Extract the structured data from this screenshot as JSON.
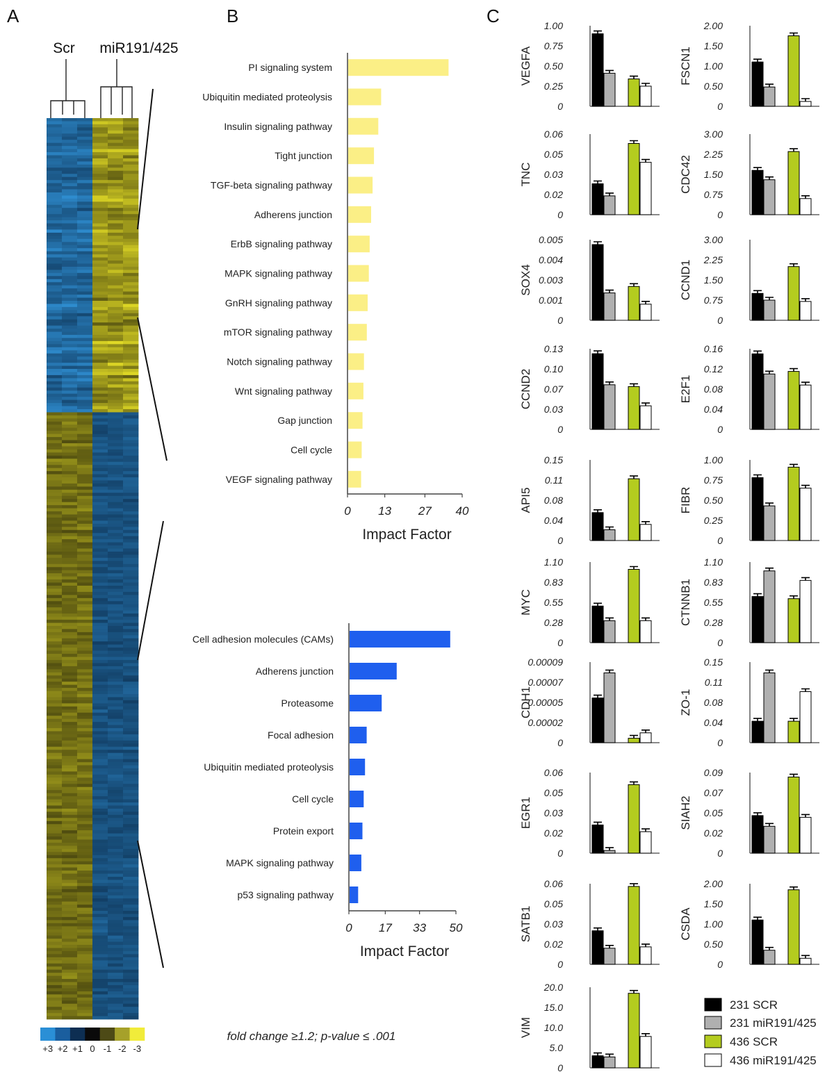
{
  "panels": [
    "A",
    "B",
    "C"
  ],
  "chart_data": [
    {
      "panel": "A",
      "type": "heatmap",
      "column_groups": [
        "Scr",
        "miR191/425"
      ],
      "colorbar_labels": [
        "+3",
        "+2",
        "+1",
        "0",
        "-1",
        "-2",
        "-3"
      ],
      "colorbar_colors": [
        "#2a8fd6",
        "#1a5e9e",
        "#0d2e52",
        "#0a0a0a",
        "#4d4a16",
        "#a6a12a",
        "#f1ec3a"
      ],
      "colors": {
        "blue": "#2f7fb7",
        "yellow": "#d9d42c",
        "dark": "#2a2a14"
      },
      "rows_top": 95,
      "rows_bottom": 196,
      "rows_switch": 34
    },
    {
      "panel": "B-top",
      "type": "bar",
      "orientation": "horizontal",
      "categories": [
        "PI signaling system",
        "Ubiquitin mediated proteolysis",
        "Insulin signaling pathway",
        "Tight junction",
        "TGF-beta signaling pathway",
        "Adherens junction",
        "ErbB signaling pathway",
        "MAPK signaling pathway",
        "GnRH signaling pathway",
        "mTOR signaling pathway",
        "Notch signaling pathway",
        "Wnt signaling pathway",
        "Gap junction",
        "Cell cycle",
        "VEGF signaling pathway"
      ],
      "values": [
        35,
        11.5,
        10.5,
        9,
        8.5,
        8,
        7.5,
        7.2,
        6.8,
        6.5,
        5.5,
        5.3,
        5,
        4.7,
        4.5
      ],
      "xticks": [
        "0",
        "13",
        "27",
        "40"
      ],
      "xlim": [
        0,
        40
      ],
      "xlabel": "Impact Factor",
      "color": "#fbef86"
    },
    {
      "panel": "B-bottom",
      "type": "bar",
      "orientation": "horizontal",
      "categories": [
        "Cell adhesion molecules (CAMs)",
        "Adherens junction",
        "Proteasome",
        "Focal adhesion",
        "Ubiquitin mediated proteolysis",
        "Cell cycle",
        "Protein export",
        "MAPK signaling pathway",
        "p53 signaling pathway"
      ],
      "values": [
        47,
        22,
        15,
        8,
        7.2,
        6.6,
        6,
        5.5,
        4
      ],
      "xticks": [
        "0",
        "17",
        "33",
        "50"
      ],
      "xlim": [
        0,
        50
      ],
      "xlabel": "Impact Factor",
      "color": "#1f5fee",
      "footnote": "fold change ≥1.2; p-value ≤ .001"
    },
    {
      "panel": "C",
      "type": "bar",
      "series": [
        {
          "name": "231 SCR",
          "color": "#000000"
        },
        {
          "name": "231 miR191/425",
          "color": "#b0b0b0"
        },
        {
          "name": "436 SCR",
          "color": "#b4cc1f"
        },
        {
          "name": "436 miR191/425",
          "color": "#ffffff"
        }
      ],
      "genes": [
        {
          "gene": "VEGFA",
          "ylim": [
            0,
            1.0
          ],
          "yticks": [
            "1.00",
            "0.75",
            "0.50",
            "0.25",
            "0"
          ],
          "values": [
            0.9,
            0.41,
            0.34,
            0.25
          ]
        },
        {
          "gene": "FSCN1",
          "ylim": [
            0,
            2.0
          ],
          "yticks": [
            "2.00",
            "1.50",
            "1.00",
            "0.50",
            "0"
          ],
          "values": [
            1.1,
            0.48,
            1.75,
            0.12
          ]
        },
        {
          "gene": "TNC",
          "ylim": [
            0,
            0.06
          ],
          "yticks": [
            "0.06",
            "0.05",
            "0.03",
            "0.02",
            "0"
          ],
          "values": [
            0.023,
            0.014,
            0.053,
            0.039
          ]
        },
        {
          "gene": "CDC42",
          "ylim": [
            0,
            3.0
          ],
          "yticks": [
            "3.00",
            "2.25",
            "1.50",
            "0.75",
            "0"
          ],
          "values": [
            1.65,
            1.3,
            2.35,
            0.6
          ]
        },
        {
          "gene": "SOX4",
          "ylim": [
            0,
            0.005
          ],
          "yticks": [
            "0.005",
            "0.004",
            "0.003",
            "0.001",
            "0"
          ],
          "values": [
            0.0047,
            0.0017,
            0.0021,
            0.001
          ]
        },
        {
          "gene": "CCND1",
          "ylim": [
            0,
            3.0
          ],
          "yticks": [
            "3.00",
            "2.25",
            "1.50",
            "0.75",
            "0"
          ],
          "values": [
            1.0,
            0.75,
            2.0,
            0.7
          ]
        },
        {
          "gene": "CCND2",
          "ylim": [
            0,
            0.13
          ],
          "yticks": [
            "0.13",
            "0.10",
            "0.07",
            "0.03",
            "0"
          ],
          "values": [
            0.122,
            0.072,
            0.069,
            0.038
          ]
        },
        {
          "gene": "E2F1",
          "ylim": [
            0,
            0.16
          ],
          "yticks": [
            "0.16",
            "0.12",
            "0.08",
            "0.04",
            "0"
          ],
          "values": [
            0.15,
            0.11,
            0.115,
            0.088
          ]
        },
        {
          "gene": "API5",
          "ylim": [
            0,
            0.15
          ],
          "yticks": [
            "0.15",
            "0.11",
            "0.08",
            "0.04",
            "0"
          ],
          "values": [
            0.052,
            0.02,
            0.115,
            0.03
          ]
        },
        {
          "gene": "FIBR",
          "ylim": [
            0,
            1.0
          ],
          "yticks": [
            "1.00",
            "0.75",
            "0.50",
            "0.25",
            "0"
          ],
          "values": [
            0.78,
            0.43,
            0.91,
            0.65
          ]
        },
        {
          "gene": "MYC",
          "ylim": [
            0,
            1.1
          ],
          "yticks": [
            "1.10",
            "0.83",
            "0.55",
            "0.28",
            "0"
          ],
          "values": [
            0.5,
            0.3,
            1.0,
            0.3
          ]
        },
        {
          "gene": "CTNNB1",
          "ylim": [
            0,
            1.1
          ],
          "yticks": [
            "1.10",
            "0.83",
            "0.55",
            "0.28",
            "0"
          ],
          "values": [
            0.63,
            0.98,
            0.6,
            0.85
          ]
        },
        {
          "gene": "CDH1",
          "ylim": [
            0,
            9e-05
          ],
          "yticks": [
            "0.00009",
            "0.00007",
            "0.00005",
            "0.00002",
            "0"
          ],
          "values": [
            5e-05,
            7.8e-05,
            5e-06,
            1.1e-05
          ]
        },
        {
          "gene": "ZO-1",
          "ylim": [
            0,
            0.15
          ],
          "yticks": [
            "0.15",
            "0.11",
            "0.08",
            "0.04",
            "0"
          ],
          "values": [
            0.04,
            0.13,
            0.04,
            0.095
          ]
        },
        {
          "gene": "EGR1",
          "ylim": [
            0,
            0.06
          ],
          "yticks": [
            "0.06",
            "0.05",
            "0.03",
            "0.02",
            "0"
          ],
          "values": [
            0.021,
            0.002,
            0.051,
            0.016
          ]
        },
        {
          "gene": "SIAH2",
          "ylim": [
            0,
            0.09
          ],
          "yticks": [
            "0.09",
            "0.07",
            "0.05",
            "0.02",
            "0"
          ],
          "values": [
            0.042,
            0.03,
            0.085,
            0.04
          ]
        },
        {
          "gene": "SATB1",
          "ylim": [
            0,
            0.06
          ],
          "yticks": [
            "0.06",
            "0.05",
            "0.03",
            "0.02",
            "0"
          ],
          "values": [
            0.025,
            0.012,
            0.058,
            0.013
          ]
        },
        {
          "gene": "CSDA",
          "ylim": [
            0,
            2.0
          ],
          "yticks": [
            "2.00",
            "1.50",
            "1.00",
            "0.50",
            "0"
          ],
          "values": [
            1.1,
            0.35,
            1.85,
            0.15
          ]
        },
        {
          "gene": "VIM",
          "ylim": [
            0,
            20
          ],
          "yticks": [
            "20.0",
            "15.0",
            "10.0",
            "5.0",
            "0"
          ],
          "values": [
            3.0,
            2.7,
            18.5,
            7.8
          ]
        }
      ]
    }
  ]
}
